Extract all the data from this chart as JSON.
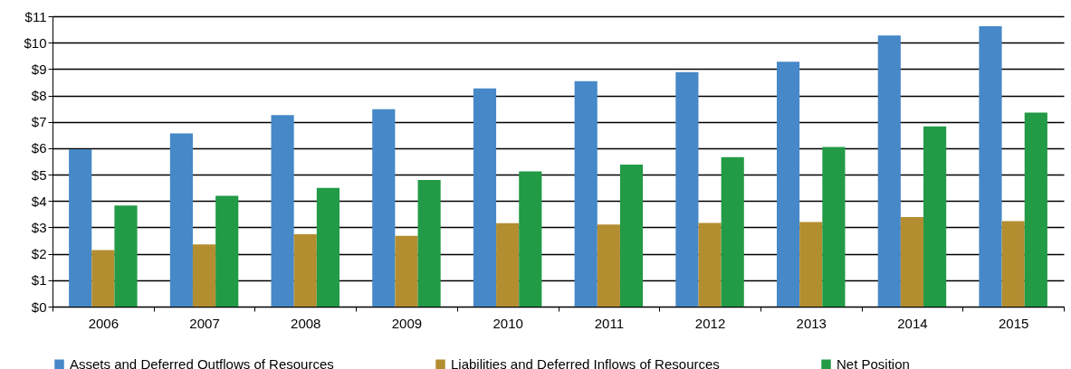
{
  "chart_data": {
    "type": "bar",
    "categories": [
      "2006",
      "2007",
      "2008",
      "2009",
      "2010",
      "2011",
      "2012",
      "2013",
      "2014",
      "2015"
    ],
    "series": [
      {
        "name": "Assets and Deferred Outflows of Resources",
        "color": "#4688c8",
        "values": [
          5.96,
          6.56,
          7.26,
          7.48,
          8.27,
          8.54,
          8.88,
          9.28,
          10.27,
          10.62
        ]
      },
      {
        "name": "Liabilities and Deferred Inflows of Resources",
        "color": "#b38e31",
        "values": [
          2.14,
          2.36,
          2.74,
          2.68,
          3.16,
          3.11,
          3.17,
          3.2,
          3.39,
          3.24
        ]
      },
      {
        "name": "Net Position",
        "color": "#229a46",
        "values": [
          3.83,
          4.2,
          4.5,
          4.8,
          5.12,
          5.38,
          5.66,
          6.05,
          6.83,
          7.35
        ]
      }
    ],
    "ylim": [
      0,
      11
    ],
    "yticks": [
      {
        "value": 0,
        "label": "$0"
      },
      {
        "value": 1,
        "label": "$1"
      },
      {
        "value": 2,
        "label": "$2"
      },
      {
        "value": 3,
        "label": "$3"
      },
      {
        "value": 4,
        "label": "$4"
      },
      {
        "value": 5,
        "label": "$5"
      },
      {
        "value": 6,
        "label": "$6"
      },
      {
        "value": 7,
        "label": "$7"
      },
      {
        "value": 8,
        "label": "$8"
      },
      {
        "value": 9,
        "label": "$9"
      },
      {
        "value": 10,
        "label": "$10"
      },
      {
        "value": 11,
        "label": "$11"
      }
    ],
    "grid": "y",
    "legend": "bottom"
  }
}
